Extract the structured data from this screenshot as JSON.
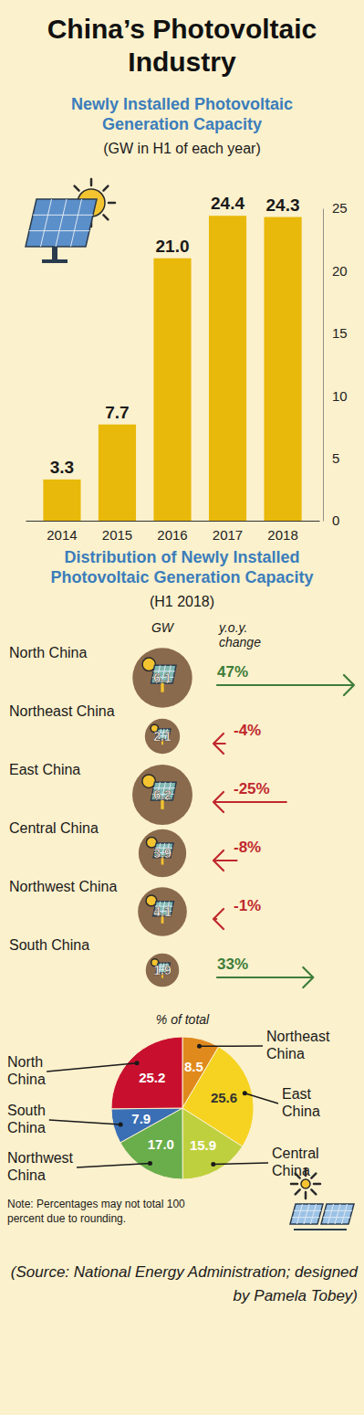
{
  "title": "China’s Photovoltaic Industry",
  "chart_data": [
    {
      "type": "bar",
      "title": "Newly Installed Photovoltaic Generation Capacity",
      "subtitle": "(GW in H1 of each year)",
      "categories": [
        "2014",
        "2015",
        "2016",
        "2017",
        "2018"
      ],
      "values": [
        3.3,
        7.7,
        21.0,
        24.4,
        24.3
      ],
      "value_labels": [
        "3.3",
        "7.7",
        "21.0",
        "24.4",
        "24.3"
      ],
      "color": "#e8b90a",
      "ylim": [
        0,
        25
      ],
      "yticks": [
        0,
        5,
        10,
        15,
        20,
        25
      ],
      "grid": false,
      "data_labels": true
    },
    {
      "type": "bubble",
      "title": "Distribution of Newly Installed Photovoltaic Generation Capacity",
      "subtitle": "(H1 2018)",
      "value_header": "GW",
      "change_header": "y.o.y. change",
      "categories": [
        "North China",
        "Northeast China",
        "East China",
        "Central China",
        "Northwest China",
        "South China"
      ],
      "values": [
        6.1,
        2.1,
        6.2,
        3.9,
        4.1,
        1.9
      ],
      "change": [
        47,
        -4,
        -25,
        -8,
        -1,
        33
      ],
      "change_labels": [
        "47%",
        "-4%",
        "-25%",
        "-8%",
        "-1%",
        "33%"
      ],
      "color": "#8a6a4c",
      "data_labels": true
    },
    {
      "type": "pie",
      "title": "% of total",
      "categories": [
        "Northeast China",
        "East China",
        "Central China",
        "Northwest China",
        "South China",
        "North China"
      ],
      "values": [
        8.5,
        25.6,
        15.9,
        17.0,
        7.9,
        25.2
      ],
      "value_labels": [
        "8.5",
        "25.6",
        "15.9",
        "17.0",
        "7.9",
        "25.2"
      ],
      "colors": [
        "#e08a1e",
        "#f5d320",
        "#bfd03e",
        "#6aae4c",
        "#3a6fb5",
        "#c8102e"
      ],
      "data_labels": true,
      "note": "Note: Percentages may not total 100 percent due to rounding."
    }
  ],
  "source": "(Source: National Energy Administration; designed by Pamela Tobey)"
}
